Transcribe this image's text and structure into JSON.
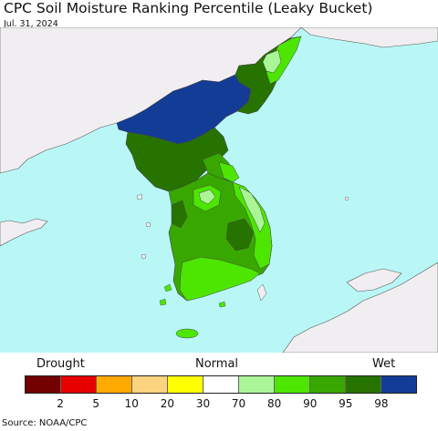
{
  "title": "CPC Soil Moisture Ranking Percentile (Leaky Bucket)",
  "date": "Jul. 31, 2024",
  "legend": {
    "left_label": "Drought",
    "center_label": "Normal",
    "right_label": "Wet",
    "colors": [
      "#730000",
      "#e60000",
      "#ffaa00",
      "#fcd37f",
      "#ffff00",
      "#ffffff",
      "#aaf596",
      "#4ce600",
      "#38a800",
      "#267300",
      "#123c96"
    ],
    "ticks": [
      "2",
      "5",
      "10",
      "20",
      "30",
      "70",
      "80",
      "90",
      "95",
      "98"
    ]
  },
  "source": "Source: NOAA/CPC",
  "map": {
    "sea_color": "#b9f7f7",
    "land_color": "#f0eef0"
  }
}
